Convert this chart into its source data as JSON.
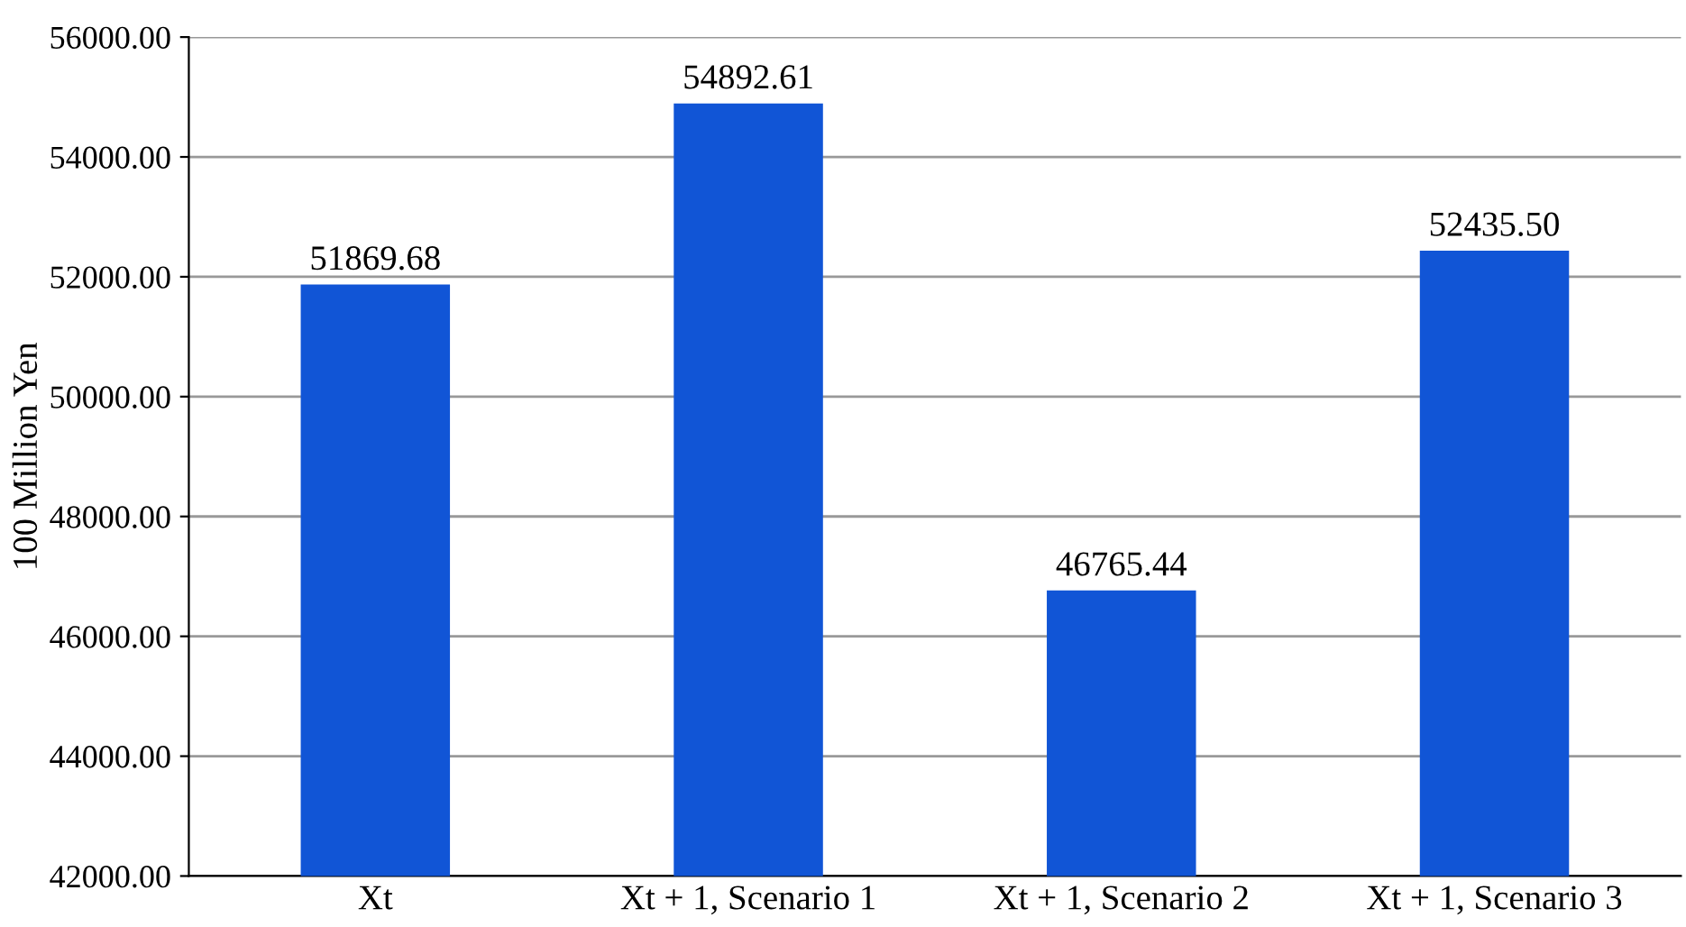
{
  "chart_data": {
    "type": "bar",
    "ylabel": "100 Million Yen",
    "categories": [
      "Xt",
      "Xt + 1, Scenario 1",
      "Xt + 1, Scenario 2",
      "Xt + 1, Scenario 3"
    ],
    "values": [
      51869.68,
      54892.61,
      46765.44,
      52435.5
    ],
    "value_labels": [
      "51869.68",
      "54892.61",
      "46765.44",
      "52435.50"
    ],
    "color": "#1155d6",
    "ylim": [
      42000,
      56000
    ],
    "yticks": [
      {
        "value": 42000,
        "label": "42000.00"
      },
      {
        "value": 44000,
        "label": "44000.00"
      },
      {
        "value": 46000,
        "label": "46000.00"
      },
      {
        "value": 48000,
        "label": "48000.00"
      },
      {
        "value": 50000,
        "label": "50000.00"
      },
      {
        "value": 52000,
        "label": "52000.00"
      },
      {
        "value": 54000,
        "label": "54000.00"
      },
      {
        "value": 56000,
        "label": "56000.00"
      }
    ],
    "grid": "y"
  }
}
